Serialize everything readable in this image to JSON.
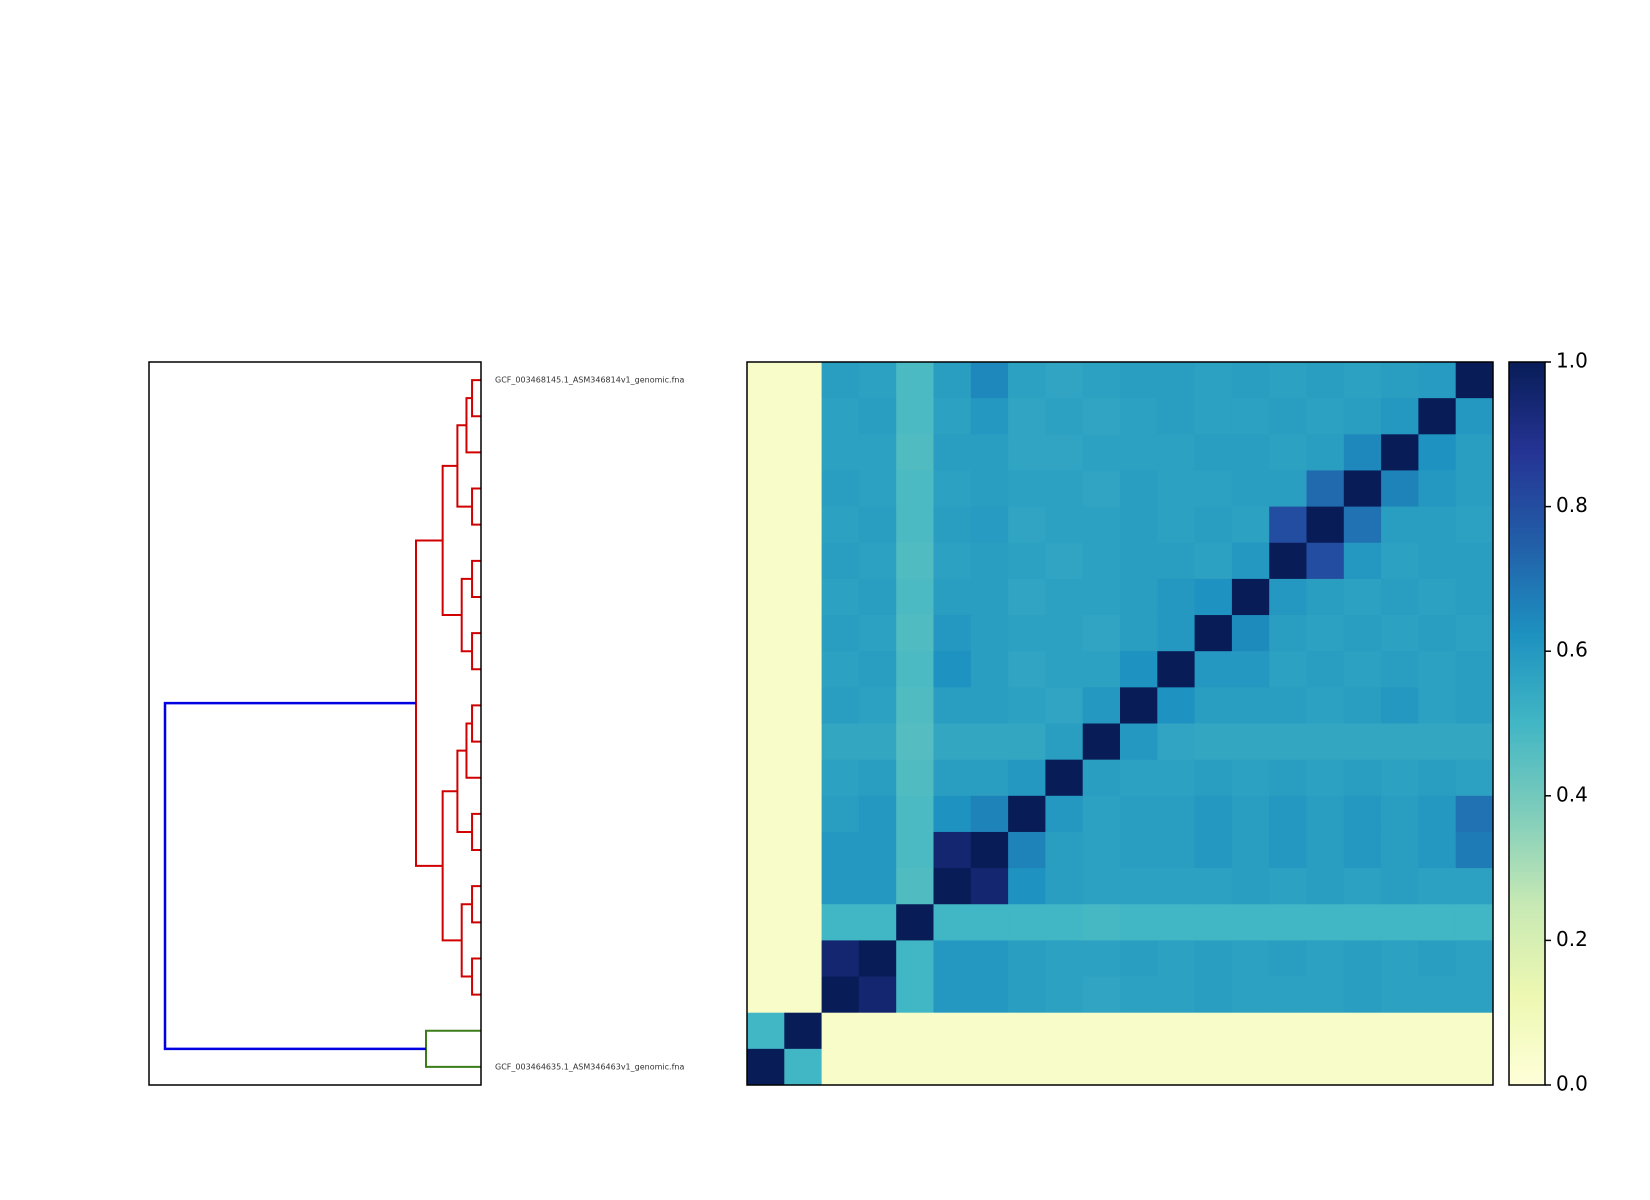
{
  "chart_data": {
    "type": "heatmap",
    "colormap": "YlGnBu",
    "row_labels": [
      "GCF_003468145.1_ASM346814v1_genomic.fna",
      null,
      null,
      null,
      null,
      null,
      null,
      null,
      null,
      null,
      null,
      null,
      null,
      null,
      null,
      null,
      null,
      null,
      null,
      "GCF_003464635.1_ASM346463v1_genomic.fna"
    ],
    "matrix": [
      [
        0.05,
        0.05,
        0.58,
        0.57,
        0.48,
        0.58,
        0.65,
        0.57,
        0.56,
        0.57,
        0.58,
        0.58,
        0.57,
        0.58,
        0.57,
        0.58,
        0.57,
        0.58,
        0.59,
        1.0
      ],
      [
        0.05,
        0.05,
        0.57,
        0.58,
        0.48,
        0.57,
        0.6,
        0.56,
        0.57,
        0.56,
        0.57,
        0.58,
        0.57,
        0.57,
        0.58,
        0.57,
        0.58,
        0.6,
        1.0,
        0.6
      ],
      [
        0.05,
        0.05,
        0.57,
        0.57,
        0.47,
        0.58,
        0.58,
        0.56,
        0.56,
        0.57,
        0.57,
        0.57,
        0.58,
        0.58,
        0.57,
        0.58,
        0.65,
        1.0,
        0.62,
        0.58
      ],
      [
        0.05,
        0.05,
        0.58,
        0.57,
        0.48,
        0.57,
        0.58,
        0.57,
        0.57,
        0.56,
        0.58,
        0.57,
        0.57,
        0.58,
        0.58,
        0.72,
        1.0,
        0.66,
        0.6,
        0.58
      ],
      [
        0.05,
        0.05,
        0.57,
        0.58,
        0.48,
        0.58,
        0.59,
        0.56,
        0.57,
        0.57,
        0.58,
        0.57,
        0.58,
        0.57,
        0.8,
        1.0,
        0.7,
        0.58,
        0.58,
        0.57
      ],
      [
        0.05,
        0.05,
        0.58,
        0.57,
        0.47,
        0.57,
        0.58,
        0.57,
        0.56,
        0.57,
        0.58,
        0.58,
        0.57,
        0.6,
        1.0,
        0.8,
        0.6,
        0.57,
        0.58,
        0.58
      ],
      [
        0.05,
        0.05,
        0.57,
        0.58,
        0.48,
        0.58,
        0.58,
        0.56,
        0.57,
        0.57,
        0.58,
        0.6,
        0.62,
        1.0,
        0.6,
        0.58,
        0.57,
        0.58,
        0.57,
        0.58
      ],
      [
        0.05,
        0.05,
        0.58,
        0.57,
        0.47,
        0.6,
        0.58,
        0.57,
        0.57,
        0.56,
        0.58,
        0.6,
        1.0,
        0.64,
        0.58,
        0.57,
        0.58,
        0.57,
        0.58,
        0.57
      ],
      [
        0.05,
        0.05,
        0.57,
        0.58,
        0.48,
        0.62,
        0.58,
        0.56,
        0.57,
        0.57,
        0.62,
        1.0,
        0.6,
        0.6,
        0.57,
        0.58,
        0.57,
        0.58,
        0.57,
        0.58
      ],
      [
        0.05,
        0.05,
        0.58,
        0.57,
        0.47,
        0.58,
        0.58,
        0.57,
        0.56,
        0.6,
        1.0,
        0.62,
        0.58,
        0.58,
        0.58,
        0.57,
        0.58,
        0.6,
        0.57,
        0.58
      ],
      [
        0.05,
        0.05,
        0.55,
        0.55,
        0.46,
        0.55,
        0.55,
        0.55,
        0.58,
        1.0,
        0.6,
        0.56,
        0.55,
        0.55,
        0.55,
        0.55,
        0.55,
        0.55,
        0.55,
        0.55
      ],
      [
        0.05,
        0.05,
        0.57,
        0.58,
        0.47,
        0.58,
        0.58,
        0.6,
        1.0,
        0.58,
        0.57,
        0.57,
        0.58,
        0.57,
        0.58,
        0.57,
        0.58,
        0.57,
        0.58,
        0.57
      ],
      [
        0.05,
        0.05,
        0.58,
        0.6,
        0.48,
        0.62,
        0.66,
        1.0,
        0.6,
        0.57,
        0.58,
        0.58,
        0.6,
        0.58,
        0.6,
        0.58,
        0.6,
        0.58,
        0.6,
        0.7
      ],
      [
        0.05,
        0.05,
        0.6,
        0.6,
        0.48,
        0.95,
        1.0,
        0.66,
        0.58,
        0.57,
        0.58,
        0.58,
        0.6,
        0.58,
        0.6,
        0.58,
        0.6,
        0.58,
        0.6,
        0.68
      ],
      [
        0.05,
        0.05,
        0.6,
        0.6,
        0.47,
        1.0,
        0.95,
        0.62,
        0.58,
        0.57,
        0.57,
        0.57,
        0.57,
        0.58,
        0.57,
        0.58,
        0.57,
        0.58,
        0.57,
        0.57
      ],
      [
        0.05,
        0.05,
        0.5,
        0.5,
        1.0,
        0.5,
        0.5,
        0.5,
        0.5,
        0.49,
        0.5,
        0.5,
        0.5,
        0.5,
        0.5,
        0.5,
        0.5,
        0.5,
        0.5,
        0.5
      ],
      [
        0.05,
        0.05,
        0.95,
        1.0,
        0.5,
        0.6,
        0.6,
        0.58,
        0.57,
        0.57,
        0.58,
        0.57,
        0.58,
        0.57,
        0.58,
        0.57,
        0.58,
        0.57,
        0.58,
        0.57
      ],
      [
        0.05,
        0.05,
        1.0,
        0.95,
        0.5,
        0.6,
        0.6,
        0.58,
        0.57,
        0.56,
        0.57,
        0.57,
        0.58,
        0.57,
        0.57,
        0.57,
        0.58,
        0.57,
        0.57,
        0.57
      ],
      [
        0.5,
        1.0,
        0.05,
        0.05,
        0.05,
        0.05,
        0.05,
        0.05,
        0.05,
        0.05,
        0.05,
        0.05,
        0.05,
        0.05,
        0.05,
        0.05,
        0.05,
        0.05,
        0.05,
        0.05
      ],
      [
        1.0,
        0.5,
        0.05,
        0.05,
        0.05,
        0.05,
        0.05,
        0.05,
        0.05,
        0.05,
        0.05,
        0.05,
        0.05,
        0.05,
        0.05,
        0.05,
        0.05,
        0.05,
        0.05,
        0.05
      ]
    ],
    "clim": [
      0,
      1
    ],
    "cticks": [
      {
        "value": 0,
        "label": "0.0"
      },
      0.2,
      0.4,
      0.6,
      0.8,
      {
        "value": 1,
        "label": "1.0"
      }
    ]
  }
}
